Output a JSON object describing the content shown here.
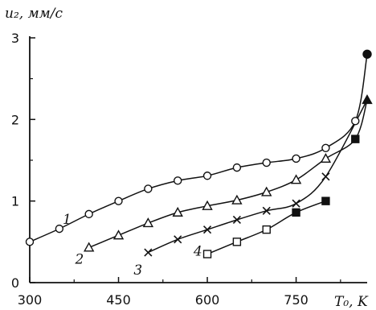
{
  "chart_data": {
    "type": "line",
    "ylabel": "u₂, мм/с",
    "xlabel": "T₀, K",
    "xlim": [
      300,
      870
    ],
    "ylim": [
      0,
      3
    ],
    "xticks": [
      300,
      450,
      600,
      750
    ],
    "xtick_labels": [
      "300",
      "450",
      "600",
      "750"
    ],
    "yticks": [
      0,
      1,
      2,
      3
    ],
    "ytick_labels": [
      "0",
      "1",
      "2",
      "3"
    ],
    "grid": false,
    "series": [
      {
        "name": "1",
        "marker": "circle-open",
        "label_at": [
          363,
          0.72
        ],
        "points": [
          [
            300,
            0.5
          ],
          [
            350,
            0.66
          ],
          [
            400,
            0.84
          ],
          [
            450,
            1.0
          ],
          [
            500,
            1.15
          ],
          [
            550,
            1.25
          ],
          [
            600,
            1.31
          ],
          [
            650,
            1.41
          ],
          [
            700,
            1.47
          ],
          [
            750,
            1.52
          ],
          [
            800,
            1.65
          ],
          [
            850,
            1.98
          ]
        ],
        "curve_extra": [
          [
            870,
            2.8
          ]
        ]
      },
      {
        "name": "2",
        "marker": "triangle-open",
        "label_at": [
          384,
          0.23
        ],
        "points": [
          [
            400,
            0.43
          ],
          [
            450,
            0.58
          ],
          [
            500,
            0.73
          ],
          [
            550,
            0.86
          ],
          [
            600,
            0.94
          ],
          [
            650,
            1.01
          ],
          [
            700,
            1.11
          ],
          [
            750,
            1.26
          ],
          [
            800,
            1.52
          ],
          [
            850,
            1.76
          ]
        ],
        "curve_extra": [
          [
            870,
            2.24
          ]
        ]
      },
      {
        "name": "3",
        "marker": "cross",
        "label_at": [
          483,
          0.1
        ],
        "points": [
          [
            500,
            0.37
          ],
          [
            550,
            0.53
          ],
          [
            600,
            0.65
          ],
          [
            650,
            0.77
          ],
          [
            700,
            0.88
          ],
          [
            750,
            0.97
          ],
          [
            800,
            1.3
          ]
        ],
        "curve_extra": [
          [
            870,
            2.24
          ]
        ]
      },
      {
        "name": "4",
        "marker": "square-open",
        "label_at": [
          584,
          0.33
        ],
        "points": [
          [
            600,
            0.35
          ],
          [
            650,
            0.5
          ],
          [
            700,
            0.65
          ],
          [
            750,
            0.86
          ],
          [
            800,
            1.0
          ]
        ],
        "curve_extra": []
      }
    ],
    "filled_points": [
      {
        "shape": "square",
        "x": 750,
        "y": 0.86
      },
      {
        "shape": "square",
        "x": 800,
        "y": 1.0
      },
      {
        "shape": "square",
        "x": 850,
        "y": 1.76
      },
      {
        "shape": "triangle",
        "x": 870,
        "y": 2.24
      },
      {
        "shape": "circle",
        "x": 870,
        "y": 2.8
      }
    ]
  }
}
